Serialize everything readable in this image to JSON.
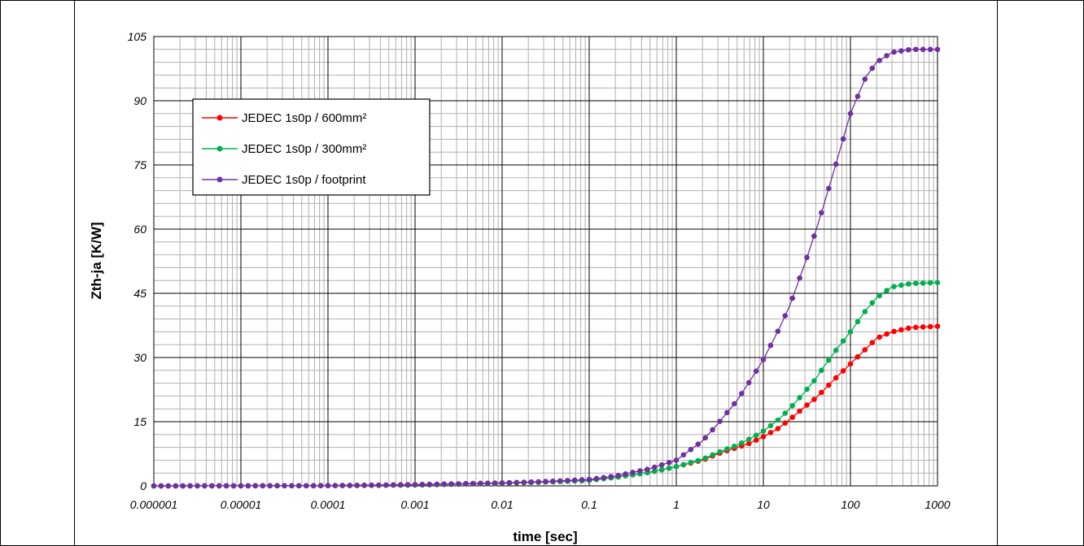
{
  "chart_data": {
    "type": "line",
    "title": "",
    "xlabel": "time [sec]",
    "ylabel": "Zth-ja  [K/W]",
    "x_scale": "log",
    "xlim": [
      1e-06,
      1000
    ],
    "ylim": [
      0,
      105
    ],
    "x_ticks": [
      "0.000001",
      "0.00001",
      "0.0001",
      "0.001",
      "0.01",
      "0.1",
      "1",
      "10",
      "100",
      "1000"
    ],
    "y_ticks": [
      "0",
      "15",
      "30",
      "45",
      "60",
      "75",
      "90",
      "105"
    ],
    "grid": true,
    "legend_position": "top-left",
    "series": [
      {
        "name": "JEDEC 1s0p / 600mm²",
        "color": "#ff0000",
        "x": [
          1e-06,
          0.0001,
          0.001,
          0.01,
          0.03,
          0.1,
          0.2,
          0.5,
          1,
          2,
          3,
          5,
          7,
          10,
          15,
          20,
          30,
          40,
          50,
          70,
          100,
          150,
          200,
          300,
          500,
          1000
        ],
        "y": [
          0,
          0.05,
          0.2,
          0.6,
          0.9,
          1.3,
          2.0,
          3.2,
          4.5,
          6.0,
          7.5,
          9.0,
          10.0,
          11.5,
          13.5,
          15.5,
          18.5,
          20.5,
          22.5,
          25.5,
          28.5,
          32.0,
          34.5,
          36.0,
          37.0,
          37.3
        ]
      },
      {
        "name": "JEDEC 1s0p / 300mm²",
        "color": "#00b050",
        "x": [
          1e-06,
          0.0001,
          0.001,
          0.01,
          0.03,
          0.1,
          0.2,
          0.5,
          1,
          2,
          3,
          5,
          7,
          10,
          15,
          20,
          30,
          40,
          50,
          70,
          100,
          150,
          200,
          300,
          500,
          1000
        ],
        "y": [
          0,
          0.05,
          0.2,
          0.6,
          0.9,
          1.3,
          2.0,
          3.2,
          4.5,
          6.2,
          7.8,
          9.5,
          11.0,
          12.8,
          15.5,
          18.0,
          22.0,
          25.0,
          28.0,
          32.0,
          36.0,
          41.0,
          44.0,
          46.5,
          47.3,
          47.5
        ]
      },
      {
        "name": "JEDEC 1s0p / footprint",
        "color": "#7030a0",
        "x": [
          1e-06,
          0.0001,
          0.001,
          0.01,
          0.03,
          0.1,
          0.2,
          0.5,
          1,
          2,
          3,
          5,
          7,
          10,
          15,
          20,
          30,
          40,
          50,
          70,
          100,
          150,
          200,
          300,
          500,
          1000
        ],
        "y": [
          0,
          0.05,
          0.3,
          0.7,
          1.0,
          1.5,
          2.3,
          4.0,
          6.0,
          10.5,
          14.5,
          20.0,
          24.5,
          29.5,
          36.5,
          42.0,
          52.0,
          59.5,
          66.0,
          76.0,
          87.0,
          95.5,
          99.0,
          101.3,
          102.0,
          102.0
        ]
      }
    ]
  }
}
